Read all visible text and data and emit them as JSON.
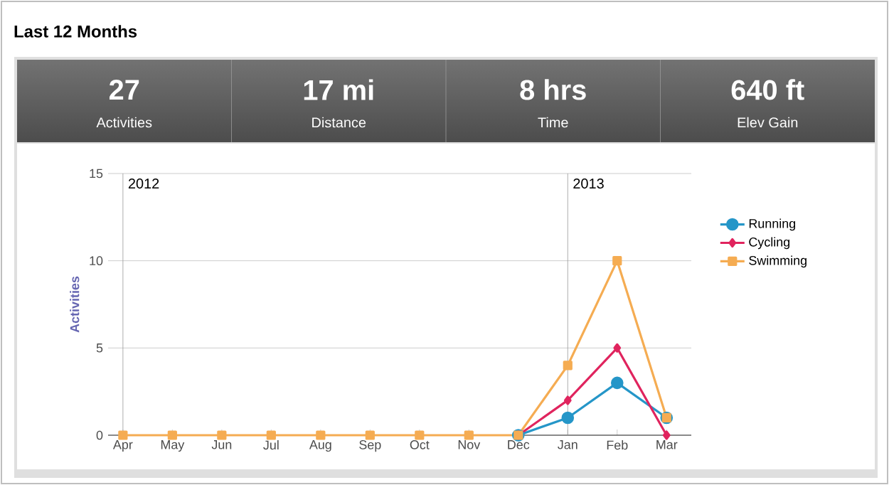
{
  "chart_data": [
    {
      "type": "other",
      "title": "Last 12 Months",
      "annotations": [
        "27",
        "Activities",
        "17 mi",
        "Distance",
        "8 hrs",
        "Time",
        "640 ft",
        "Elev Gain"
      ]
    },
    {
      "type": "line",
      "ylabel": "Activities",
      "categories": [
        "Apr",
        "May",
        "Jun",
        "Jul",
        "Aug",
        "Sep",
        "Oct",
        "Nov",
        "Dec",
        "Jan",
        "Feb",
        "Mar"
      ],
      "series": [
        {
          "name": "Running",
          "color": "#2596c8",
          "marker": "circle",
          "values": [
            null,
            null,
            null,
            null,
            null,
            null,
            null,
            null,
            0,
            1,
            3,
            1
          ]
        },
        {
          "name": "Cycling",
          "color": "#e0245e",
          "marker": "diamond",
          "values": [
            null,
            null,
            null,
            null,
            null,
            null,
            null,
            null,
            0,
            2,
            5,
            0
          ]
        },
        {
          "name": "Swimming",
          "color": "#f5ac52",
          "marker": "square",
          "values": [
            0,
            0,
            0,
            0,
            0,
            0,
            0,
            0,
            0,
            4,
            10,
            1
          ]
        }
      ],
      "ylim": [
        0,
        15
      ],
      "yticks": [
        0,
        5,
        10,
        15
      ],
      "grid": "y",
      "legend": "right",
      "line_style": "solid",
      "ref_lines": [
        {
          "axis": "x",
          "value": "Apr",
          "label": "2012"
        },
        {
          "axis": "x",
          "value": "Jan",
          "label": "2013"
        }
      ]
    }
  ]
}
